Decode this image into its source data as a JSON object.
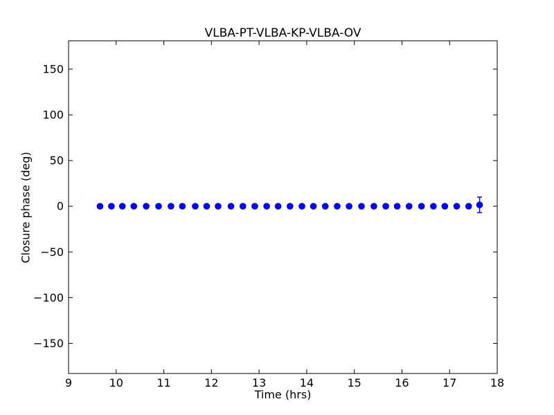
{
  "chart_data": {
    "type": "scatter",
    "title": "VLBA-PT-VLBA-KP-VLBA-OV",
    "xlabel": "Time (hrs)",
    "ylabel": "Closure phase (deg)",
    "xlim": [
      9,
      18
    ],
    "ylim": [
      -183,
      181
    ],
    "xticks": [
      9,
      10,
      11,
      12,
      13,
      14,
      15,
      16,
      17,
      18
    ],
    "yticks": [
      -150,
      -100,
      -50,
      0,
      50,
      100,
      150
    ],
    "grid": false,
    "legend": "none",
    "marker_color": "#0000ff",
    "marker_edge_color": "#0000c0",
    "axis_color": "#000000",
    "background_color": "#ffffff",
    "series": [
      {
        "name": "closure-phase-points",
        "x": [
          9.66,
          9.9,
          10.13,
          10.37,
          10.63,
          10.89,
          11.15,
          11.39,
          11.66,
          11.9,
          12.14,
          12.41,
          12.66,
          12.91,
          13.16,
          13.4,
          13.65,
          13.9,
          14.14,
          14.39,
          14.64,
          14.89,
          15.15,
          15.41,
          15.66,
          15.9,
          16.15,
          16.41,
          16.66,
          16.9,
          17.15,
          17.4,
          17.63
        ],
        "y": [
          0,
          0,
          0,
          0,
          0,
          0,
          0,
          0,
          0,
          0,
          0,
          0,
          0,
          0,
          0,
          0,
          0,
          0,
          0,
          0,
          0,
          0,
          0,
          0,
          0,
          0,
          0,
          0,
          0,
          0,
          0,
          0,
          1.5
        ],
        "yerr": [
          0,
          0,
          0,
          0,
          0,
          0,
          0,
          0,
          0,
          0,
          0,
          0,
          0,
          0,
          0,
          0,
          0,
          0,
          0,
          0,
          0,
          0,
          0,
          0,
          0,
          0,
          0,
          0,
          0,
          0,
          0,
          0,
          8.5
        ]
      }
    ]
  }
}
